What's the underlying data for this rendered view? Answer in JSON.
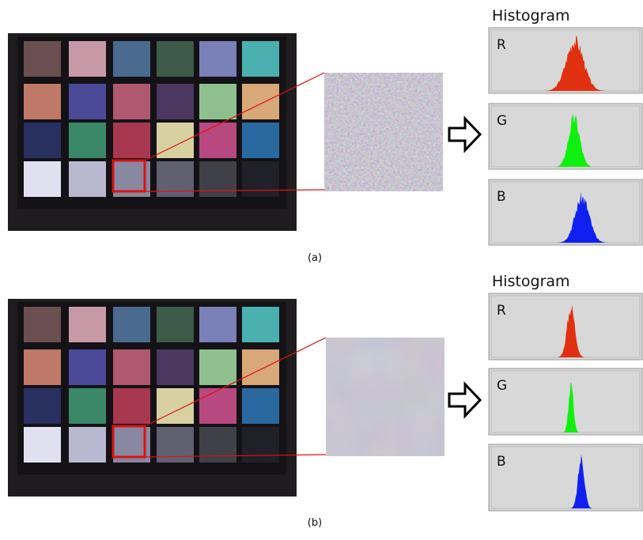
{
  "panels": [
    {
      "label": "(a)",
      "histogram": {
        "title": "Histogram",
        "channels": [
          "R",
          "G",
          "B"
        ]
      }
    },
    {
      "label": "(b)",
      "histogram": {
        "title": "Histogram",
        "channels": [
          "R",
          "G",
          "B"
        ]
      }
    }
  ]
}
